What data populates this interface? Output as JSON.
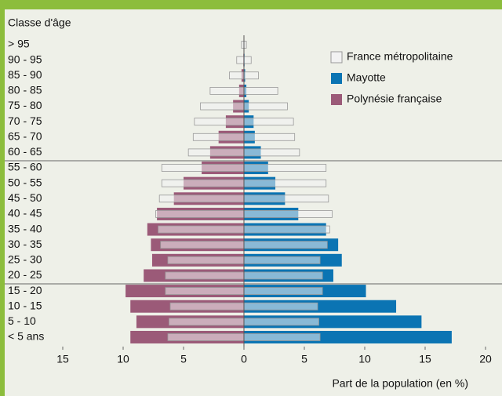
{
  "chart_data": {
    "type": "bar",
    "y_label": "Classe d'âge",
    "x_label": "Part de la population (en %)",
    "categories": [
      "> 95",
      "90 - 95",
      "85 - 90",
      "80 - 85",
      "75 - 80",
      "70 - 75",
      "65 - 70",
      "60 - 65",
      "55 - 60",
      "50 - 55",
      "45 - 50",
      "40 - 45",
      "35 - 40",
      "30 - 35",
      "25 - 30",
      "20 - 25",
      "15 - 20",
      "10 - 15",
      "5 - 10",
      "< 5 ans"
    ],
    "series": [
      {
        "name": "France métropolitaine",
        "color": "#f2f2f2",
        "side": "both",
        "values": [
          0.2,
          0.6,
          1.2,
          2.8,
          3.6,
          4.1,
          4.2,
          4.6,
          6.8,
          6.8,
          7.0,
          7.3,
          7.1,
          6.9,
          6.3,
          6.5,
          6.5,
          6.1,
          6.2,
          6.3
        ]
      },
      {
        "name": "Mayotte",
        "color": "#0b74b3",
        "side": "right",
        "values": [
          0,
          0.05,
          0.1,
          0.2,
          0.4,
          0.8,
          0.9,
          1.4,
          2.0,
          2.6,
          3.4,
          4.5,
          6.8,
          7.8,
          8.1,
          7.4,
          10.1,
          12.6,
          14.7,
          17.2
        ]
      },
      {
        "name": "Polynésie française",
        "color": "#9b5a78",
        "side": "left",
        "values": [
          0,
          0.05,
          0.2,
          0.4,
          0.9,
          1.5,
          2.1,
          2.8,
          3.5,
          5.0,
          5.8,
          7.2,
          8.0,
          7.7,
          7.6,
          8.3,
          9.8,
          9.4,
          8.9,
          9.4
        ]
      }
    ],
    "xlim": [
      -15,
      20
    ],
    "xticks": [
      {
        "value": -15,
        "label": "15"
      },
      {
        "value": -10,
        "label": "10"
      },
      {
        "value": -5,
        "label": "5"
      },
      0,
      5,
      10,
      15,
      20
    ]
  }
}
